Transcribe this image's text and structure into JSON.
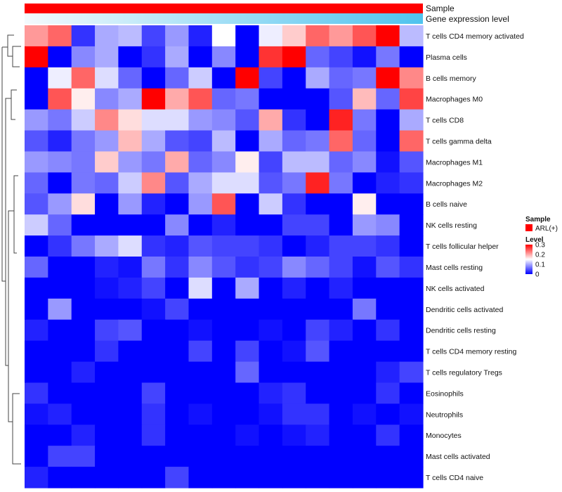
{
  "chart_data": {
    "type": "heatmap",
    "annotations": [
      {
        "label": "Sample",
        "style": "solid",
        "color": "#ff0000"
      },
      {
        "label": "Gene expression level",
        "style": "gradient",
        "from": "#f4fafd",
        "to": "#4fc3ee"
      }
    ],
    "rows": [
      "T cells CD4 memory activated",
      "Plasma cells",
      "B cells memory",
      "Macrophages M0",
      "T cells CD8",
      "T cells gamma delta",
      "Macrophages M1",
      "Macrophages M2",
      "B cells naive",
      "NK cells resting",
      "T cells follicular helper",
      "Mast cells resting",
      "NK cells activated",
      "Dendritic cells activated",
      "Dendritic cells resting",
      "T cells CD4 memory resting",
      "T cells regulatory  Tregs",
      "Eosinophils",
      "Neutrophils",
      "Monocytes",
      "Mast cells activated",
      "T cells CD4 naive"
    ],
    "values": [
      [
        0.21,
        0.24,
        0.03,
        0.1,
        0.11,
        0.04,
        0.09,
        0.02,
        0.15,
        0.0,
        0.14,
        0.18,
        0.24,
        0.21,
        0.25,
        0.31,
        0.11
      ],
      [
        0.31,
        0.0,
        0.08,
        0.1,
        0.0,
        0.03,
        0.1,
        0.0,
        0.08,
        0.0,
        0.27,
        0.32,
        0.06,
        0.04,
        0.01,
        0.07,
        0.0
      ],
      [
        0.0,
        0.14,
        0.24,
        0.13,
        0.06,
        0.0,
        0.06,
        0.12,
        0.0,
        0.3,
        0.04,
        0.0,
        0.1,
        0.06,
        0.07,
        0.32,
        0.22
      ],
      [
        0.0,
        0.25,
        0.16,
        0.08,
        0.1,
        0.3,
        0.2,
        0.25,
        0.06,
        0.07,
        0.0,
        0.0,
        0.0,
        0.05,
        0.19,
        0.06,
        0.26
      ],
      [
        0.09,
        0.07,
        0.12,
        0.22,
        0.17,
        0.13,
        0.13,
        0.09,
        0.08,
        0.05,
        0.2,
        0.03,
        0.0,
        0.28,
        0.07,
        0.0,
        0.1
      ],
      [
        0.05,
        0.02,
        0.07,
        0.09,
        0.19,
        0.1,
        0.05,
        0.04,
        0.11,
        0.0,
        0.1,
        0.06,
        0.07,
        0.24,
        0.06,
        0.0,
        0.24
      ],
      [
        0.09,
        0.08,
        0.07,
        0.18,
        0.09,
        0.07,
        0.2,
        0.06,
        0.08,
        0.16,
        0.04,
        0.11,
        0.11,
        0.06,
        0.08,
        0.01,
        0.05
      ],
      [
        0.06,
        0.0,
        0.07,
        0.06,
        0.12,
        0.22,
        0.05,
        0.1,
        0.13,
        0.13,
        0.05,
        0.07,
        0.28,
        0.07,
        0.0,
        0.02,
        0.03
      ],
      [
        0.05,
        0.09,
        0.17,
        0.0,
        0.09,
        0.02,
        0.0,
        0.09,
        0.25,
        0.0,
        0.12,
        0.03,
        0.0,
        0.0,
        0.16,
        0.0,
        0.0
      ],
      [
        0.12,
        0.06,
        0.0,
        0.0,
        0.0,
        0.0,
        0.08,
        0.0,
        0.02,
        0.0,
        0.0,
        0.04,
        0.04,
        0.0,
        0.09,
        0.08,
        0.0
      ],
      [
        0.0,
        0.03,
        0.07,
        0.1,
        0.13,
        0.03,
        0.02,
        0.05,
        0.04,
        0.04,
        0.03,
        0.0,
        0.02,
        0.04,
        0.04,
        0.03,
        0.0
      ],
      [
        0.06,
        0.0,
        0.0,
        0.02,
        0.01,
        0.07,
        0.03,
        0.08,
        0.05,
        0.03,
        0.04,
        0.08,
        0.06,
        0.04,
        0.01,
        0.05,
        0.03
      ],
      [
        0.0,
        0.0,
        0.0,
        0.01,
        0.02,
        0.04,
        0.0,
        0.13,
        0.0,
        0.1,
        0.0,
        0.02,
        0.0,
        0.02,
        0.0,
        0.0,
        0.0
      ],
      [
        0.0,
        0.09,
        0.0,
        0.0,
        0.0,
        0.01,
        0.04,
        0.0,
        0.0,
        0.0,
        0.0,
        0.0,
        0.0,
        0.0,
        0.07,
        0.0,
        0.0
      ],
      [
        0.02,
        0.0,
        0.0,
        0.04,
        0.05,
        0.0,
        0.0,
        0.01,
        0.0,
        0.0,
        0.01,
        0.0,
        0.04,
        0.02,
        0.0,
        0.03,
        0.0
      ],
      [
        0.0,
        0.0,
        0.0,
        0.03,
        0.0,
        0.0,
        0.0,
        0.04,
        0.0,
        0.04,
        0.0,
        0.01,
        0.05,
        0.0,
        0.0,
        0.0,
        0.0
      ],
      [
        0.0,
        0.0,
        0.02,
        0.0,
        0.0,
        0.0,
        0.0,
        0.0,
        0.0,
        0.06,
        0.0,
        0.0,
        0.0,
        0.0,
        0.0,
        0.02,
        0.04
      ],
      [
        0.03,
        0.0,
        0.0,
        0.0,
        0.0,
        0.04,
        0.0,
        0.0,
        0.0,
        0.0,
        0.02,
        0.03,
        0.0,
        0.0,
        0.0,
        0.03,
        0.0
      ],
      [
        0.01,
        0.02,
        0.0,
        0.0,
        0.0,
        0.03,
        0.0,
        0.01,
        0.0,
        0.0,
        0.01,
        0.03,
        0.03,
        0.0,
        0.01,
        0.0,
        0.01
      ],
      [
        0.0,
        0.0,
        0.02,
        0.0,
        0.0,
        0.03,
        0.0,
        0.0,
        0.0,
        0.01,
        0.0,
        0.01,
        0.02,
        0.0,
        0.0,
        0.03,
        0.0
      ],
      [
        0.0,
        0.04,
        0.04,
        0.0,
        0.0,
        0.0,
        0.0,
        0.0,
        0.0,
        0.0,
        0.0,
        0.0,
        0.0,
        0.0,
        0.0,
        0.0,
        0.0
      ],
      [
        0.02,
        0.0,
        0.0,
        0.0,
        0.0,
        0.0,
        0.04,
        0.0,
        0.0,
        0.0,
        0.0,
        0.0,
        0.0,
        0.0,
        0.0,
        0.0,
        0.0
      ]
    ],
    "color_scale": {
      "min": 0,
      "mid": 0.15,
      "max": 0.3,
      "low": "#0000ff",
      "midcolor": "#ffffff",
      "high": "#ff0000"
    },
    "legend": {
      "sample_title": "Sample",
      "sample_item": "ARL(+)",
      "sample_color": "#ff0000",
      "level_title": "Level",
      "level_ticks": [
        "0.3",
        "0.2",
        "0.1",
        "0"
      ],
      "level_tick_values": [
        0.3,
        0.2,
        0.1,
        0
      ]
    },
    "dendrogram": "hierarchical clustering of rows (left side)"
  }
}
